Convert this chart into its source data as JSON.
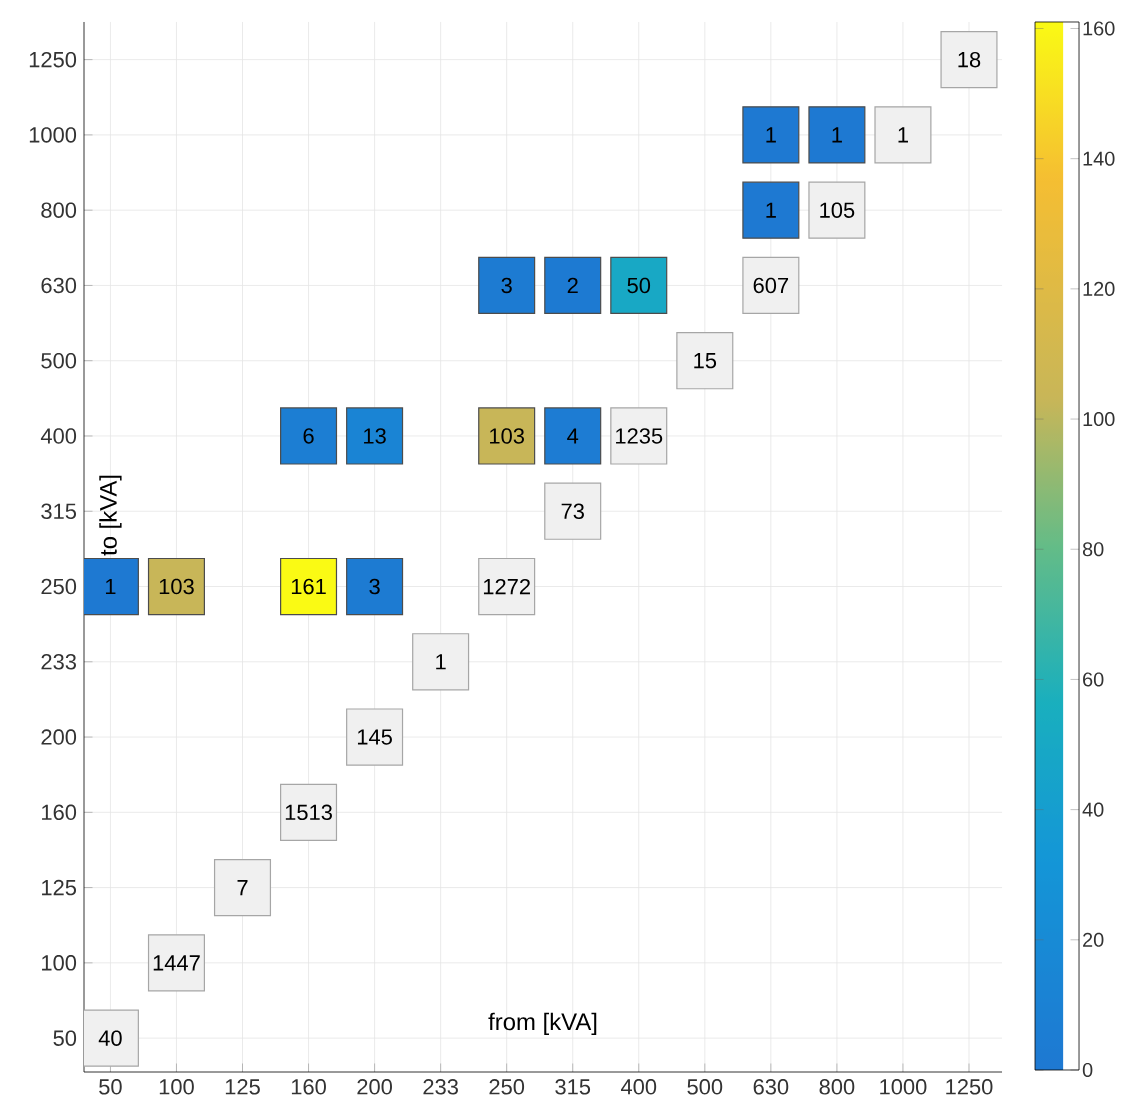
{
  "chart_data": {
    "type": "heatmap",
    "xlabel": "from [kVA]",
    "ylabel": "to [kVA]",
    "categories": [
      "50",
      "100",
      "125",
      "160",
      "200",
      "233",
      "250",
      "315",
      "400",
      "500",
      "630",
      "800",
      "1000",
      "1250"
    ],
    "y_categories": [
      "1250",
      "1000",
      "800",
      "630",
      "500",
      "400",
      "315",
      "250",
      "233",
      "200",
      "160",
      "125",
      "100",
      "50"
    ],
    "cells": [
      [
        null,
        null,
        null,
        null,
        null,
        null,
        null,
        null,
        null,
        null,
        null,
        null,
        null,
        null
      ],
      [
        null,
        null,
        null,
        null,
        null,
        null,
        null,
        null,
        null,
        null,
        1,
        1,
        null,
        null
      ],
      [
        null,
        null,
        null,
        null,
        null,
        null,
        null,
        null,
        null,
        null,
        1,
        null,
        null,
        null
      ],
      [
        null,
        null,
        null,
        null,
        null,
        null,
        3,
        2,
        50,
        null,
        null,
        null,
        null,
        null
      ],
      [
        null,
        null,
        null,
        null,
        null,
        null,
        null,
        null,
        null,
        null,
        null,
        null,
        null,
        null
      ],
      [
        null,
        null,
        null,
        6,
        13,
        null,
        103,
        4,
        null,
        null,
        null,
        null,
        null,
        null
      ],
      [
        null,
        null,
        null,
        null,
        null,
        null,
        null,
        null,
        null,
        null,
        null,
        null,
        null,
        null
      ],
      [
        1,
        103,
        null,
        161,
        3,
        null,
        null,
        null,
        null,
        null,
        null,
        null,
        null,
        null
      ],
      [
        null,
        null,
        null,
        null,
        null,
        null,
        null,
        null,
        null,
        null,
        null,
        null,
        null,
        null
      ],
      [
        null,
        null,
        null,
        null,
        null,
        null,
        null,
        null,
        null,
        null,
        null,
        null,
        null,
        null
      ],
      [
        null,
        null,
        null,
        null,
        null,
        null,
        null,
        null,
        null,
        null,
        null,
        null,
        null,
        null
      ],
      [
        null,
        null,
        null,
        null,
        null,
        null,
        null,
        null,
        null,
        null,
        null,
        null,
        null,
        null
      ],
      [
        null,
        null,
        null,
        null,
        null,
        null,
        null,
        null,
        null,
        null,
        null,
        null,
        null,
        null
      ],
      [
        null,
        null,
        null,
        null,
        null,
        null,
        null,
        null,
        null,
        null,
        null,
        null,
        null,
        null
      ]
    ],
    "cell_labels": [
      [
        null,
        null,
        null,
        null,
        null,
        null,
        null,
        null,
        null,
        null,
        null,
        null,
        null,
        "18"
      ],
      [
        null,
        null,
        null,
        null,
        null,
        null,
        null,
        null,
        null,
        null,
        "1",
        "1",
        "1",
        null
      ],
      [
        null,
        null,
        null,
        null,
        null,
        null,
        null,
        null,
        null,
        null,
        "1",
        "105",
        null,
        null
      ],
      [
        null,
        null,
        null,
        null,
        null,
        null,
        "3",
        "2",
        "50",
        null,
        "607",
        null,
        null,
        null
      ],
      [
        null,
        null,
        null,
        null,
        null,
        null,
        null,
        null,
        null,
        "15",
        null,
        null,
        null,
        null
      ],
      [
        null,
        null,
        null,
        "6",
        "13",
        null,
        "103",
        "4",
        "1235",
        null,
        null,
        null,
        null,
        null
      ],
      [
        null,
        null,
        null,
        null,
        null,
        null,
        null,
        "73",
        null,
        null,
        null,
        null,
        null,
        null
      ],
      [
        "1",
        "103",
        null,
        "161",
        "3",
        null,
        "1272",
        null,
        null,
        null,
        null,
        null,
        null,
        null
      ],
      [
        null,
        null,
        null,
        null,
        null,
        "1",
        null,
        null,
        null,
        null,
        null,
        null,
        null,
        null
      ],
      [
        null,
        null,
        null,
        null,
        "145",
        null,
        null,
        null,
        null,
        null,
        null,
        null,
        null,
        null
      ],
      [
        null,
        null,
        null,
        "1513",
        null,
        null,
        null,
        null,
        null,
        null,
        null,
        null,
        null,
        null
      ],
      [
        null,
        null,
        "7",
        null,
        null,
        null,
        null,
        null,
        null,
        null,
        null,
        null,
        null,
        null
      ],
      [
        null,
        "1447",
        null,
        null,
        null,
        null,
        null,
        null,
        null,
        null,
        null,
        null,
        null,
        null
      ],
      [
        "40",
        null,
        null,
        null,
        null,
        null,
        null,
        null,
        null,
        null,
        null,
        null,
        null,
        null
      ]
    ],
    "clim": [
      0,
      161
    ],
    "cticks": [
      0,
      20,
      40,
      60,
      80,
      100,
      120,
      140,
      160
    ],
    "grid": true
  }
}
